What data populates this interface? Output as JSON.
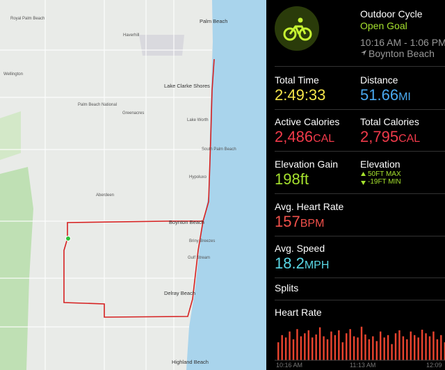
{
  "map": {
    "labels": [
      "Palm Beach",
      "Royal Palm Beach",
      "Haverhill",
      "Wellington",
      "Lake Clarke Shores",
      "Palm Beach National",
      "Greenacres",
      "Lake Worth",
      "South Palm Beach",
      "Hypoluxo",
      "Aberdeen",
      "Boynton Beach",
      "Briny Breezes",
      "Gulf Stream",
      "Delray Beach",
      "Highland Beach"
    ]
  },
  "workout": {
    "name": "Outdoor Cycle",
    "goal": "Open Goal",
    "time_range": "10:16 AM - 1:06 PM",
    "location": "Boynton Beach"
  },
  "metrics": {
    "total_time": {
      "label": "Total Time",
      "value": "2:49:33"
    },
    "distance": {
      "label": "Distance",
      "value": "51.66",
      "unit": "MI"
    },
    "active_calories": {
      "label": "Active Calories",
      "value": "2,486",
      "unit": "CAL"
    },
    "total_calories": {
      "label": "Total Calories",
      "value": "2,795",
      "unit": "CAL"
    },
    "elevation_gain": {
      "label": "Elevation Gain",
      "value": "198ft"
    },
    "elevation": {
      "label": "Elevation",
      "max": "50FT MAX",
      "min": "-19FT MIN"
    },
    "avg_heart_rate": {
      "label": "Avg. Heart Rate",
      "value": "157",
      "unit": "BPM"
    },
    "avg_speed": {
      "label": "Avg. Speed",
      "value": "18.2",
      "unit": "MPH"
    }
  },
  "splits": "Splits",
  "heart_rate": {
    "title": "Heart Rate",
    "x_labels": [
      "10:16 AM",
      "11:13 AM",
      "12:09"
    ],
    "ylim": [
      120,
      185
    ],
    "values": [
      150,
      162,
      158,
      168,
      155,
      172,
      160,
      165,
      170,
      158,
      163,
      175,
      160,
      155,
      168,
      162,
      170,
      150,
      165,
      172,
      160,
      158,
      176,
      163,
      155,
      160,
      152,
      168,
      158,
      162,
      147,
      165,
      170,
      160,
      155,
      168,
      162,
      158,
      171,
      165,
      160,
      168,
      155,
      162,
      150
    ]
  }
}
